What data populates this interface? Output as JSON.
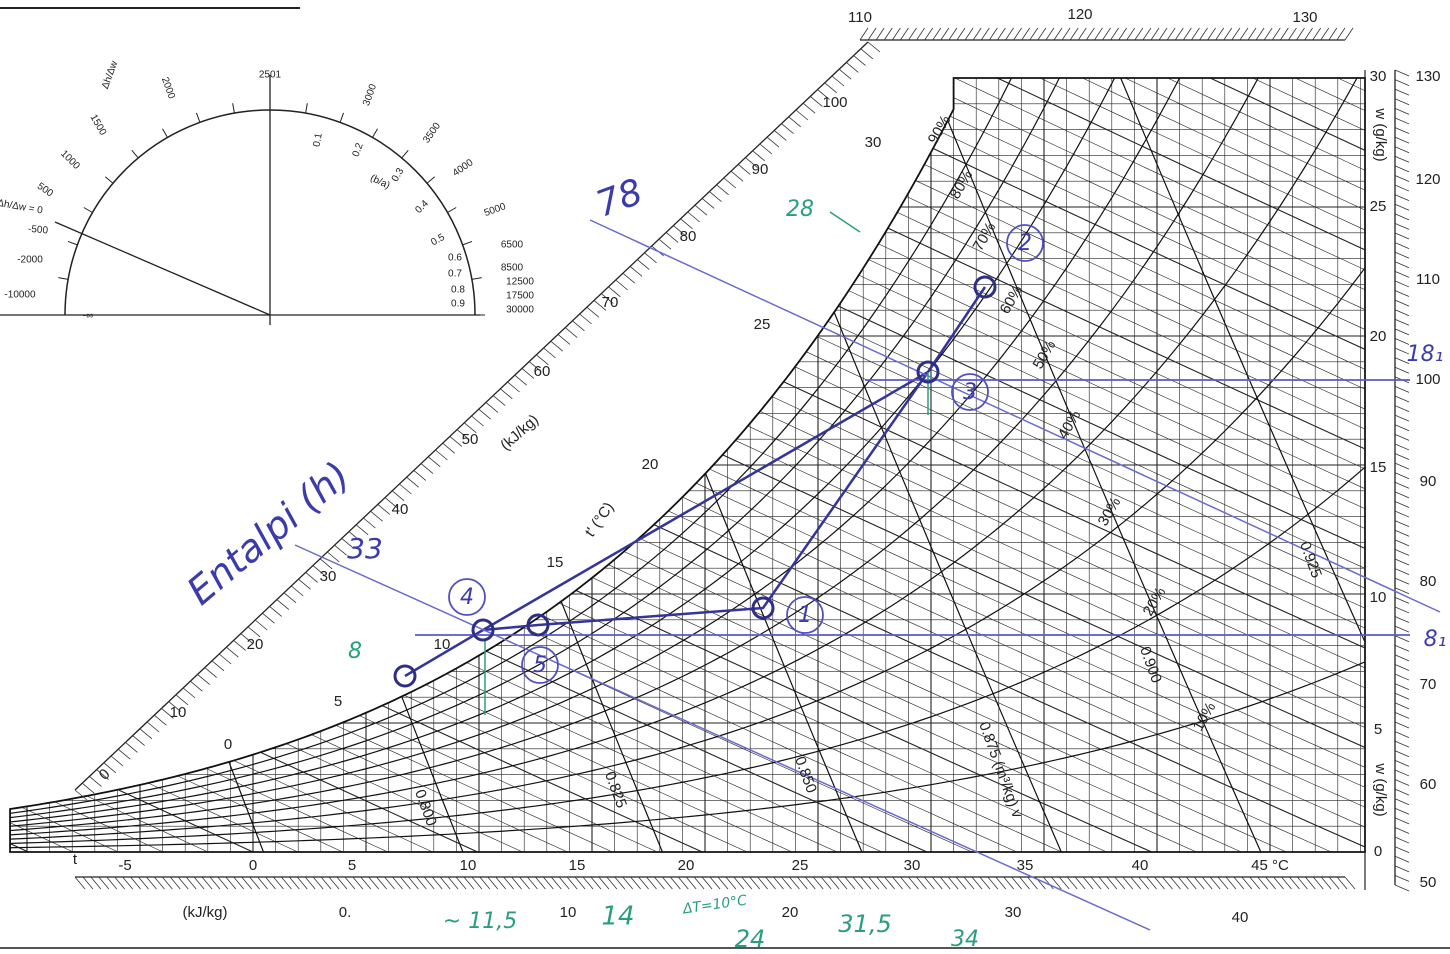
{
  "protractor": {
    "labels": [
      "Δh/Δw",
      "2501",
      "2000",
      "1500",
      "1000",
      "500",
      "Δh/Δw = 0",
      "-500",
      "-2000",
      "-10000",
      "-∞",
      "3000",
      "3500",
      "4000",
      "5000",
      "6500",
      "8500",
      "12500",
      "17500",
      "30000",
      "0.1",
      "0.2",
      "0.3",
      "0.4",
      "0.5",
      "0.6",
      "0.7",
      "0.8",
      "0.9",
      "(b/a)"
    ]
  },
  "enthalpy_scale": {
    "unit": "(kJ/kg)",
    "diagonal_ticks": [
      "0",
      "10",
      "20",
      "30",
      "40",
      "50",
      "60",
      "70",
      "80",
      "90",
      "100"
    ],
    "top_ticks": [
      "110",
      "120",
      "130"
    ],
    "right_ticks": [
      "130",
      "120",
      "110",
      "100",
      "90",
      "80",
      "70",
      "60",
      "50"
    ],
    "bottom_ticks": [
      "(kJ/kg)",
      "0.",
      "10",
      "20",
      "30",
      "40"
    ]
  },
  "dry_bulb": {
    "label": "t",
    "ticks": [
      "-5",
      "0",
      "5",
      "10",
      "15",
      "20",
      "25",
      "30",
      "35",
      "40",
      "45 °C"
    ]
  },
  "humidity_ratio": {
    "label": "w (g/kg)",
    "ticks": [
      "0",
      "5",
      "10",
      "15",
      "20",
      "25",
      "30"
    ]
  },
  "wet_bulb": {
    "label": "t' (°C)",
    "ticks": [
      "0",
      "5",
      "10",
      "15",
      "20",
      "25",
      "30"
    ]
  },
  "relative_humidity": [
    "90%",
    "80%",
    "70%",
    "60%",
    "50%",
    "40%",
    "30%",
    "20%",
    "10%"
  ],
  "specific_volume": [
    "0.800",
    "0.825",
    "0.850",
    "0.875 (m³/kg) v",
    "0.900",
    "0.925"
  ],
  "annotations": [
    "Entalpi (h)",
    "78",
    "33",
    "28",
    "8",
    "18₁",
    "8₁",
    "~ 11,5",
    "14",
    "ΔT=10°C",
    "24",
    "31,5",
    "34"
  ],
  "points": [
    "1",
    "2",
    "3",
    "4",
    "5"
  ]
}
